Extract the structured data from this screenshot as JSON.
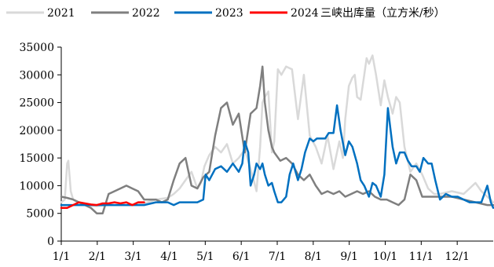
{
  "chart_data": {
    "type": "line",
    "title": "",
    "xlabel": "",
    "ylabel": "",
    "unit_label": "2024三峡出库量（立方米/秒）",
    "ylim": [
      0,
      35000
    ],
    "yticks": [
      0,
      5000,
      10000,
      15000,
      20000,
      25000,
      30000,
      35000
    ],
    "x_categories": [
      "1/1",
      "2/1",
      "3/1",
      "4/1",
      "5/1",
      "6/1",
      "7/1",
      "8/1",
      "9/1",
      "10/1",
      "11/1",
      "12/1"
    ],
    "x_domain_days": [
      0,
      365
    ],
    "grid": false,
    "legend_position": "top",
    "series": [
      {
        "name": "2021",
        "color": "#d9d9d9",
        "x": [
          0,
          3,
          5,
          6,
          8,
          10,
          14,
          20,
          30,
          40,
          50,
          60,
          70,
          80,
          90,
          95,
          100,
          105,
          110,
          115,
          118,
          121,
          125,
          130,
          135,
          140,
          145,
          150,
          155,
          160,
          162,
          165,
          168,
          170,
          172,
          175,
          178,
          180,
          183,
          186,
          190,
          195,
          200,
          205,
          210,
          215,
          220,
          225,
          230,
          235,
          238,
          240,
          243,
          246,
          248,
          250,
          253,
          256,
          258,
          260,
          263,
          266,
          270,
          273,
          276,
          280,
          283,
          286,
          290,
          295,
          300,
          305,
          310,
          315,
          320,
          330,
          340,
          350,
          355,
          360,
          365
        ],
        "values": [
          7000,
          7500,
          14000,
          14500,
          9000,
          7500,
          7000,
          6500,
          6300,
          6500,
          6500,
          6500,
          6800,
          7500,
          7800,
          8500,
          9500,
          11000,
          12500,
          9500,
          10500,
          13500,
          15500,
          17000,
          16000,
          17500,
          14000,
          15000,
          16500,
          13000,
          11500,
          9000,
          17000,
          25000,
          26000,
          27000,
          16000,
          18000,
          31000,
          30000,
          31500,
          31000,
          22000,
          30000,
          19000,
          17000,
          14000,
          19000,
          13000,
          18000,
          15000,
          22000,
          28000,
          29500,
          30000,
          26000,
          25500,
          30000,
          33000,
          32000,
          33500,
          30000,
          24500,
          29000,
          26000,
          23000,
          26000,
          25000,
          17000,
          12500,
          14000,
          12000,
          9500,
          8500,
          8500,
          9000,
          8500,
          10500,
          9000,
          8000,
          7000
        ]
      },
      {
        "name": "2022",
        "color": "#7f7f7f",
        "x": [
          0,
          5,
          10,
          15,
          20,
          25,
          30,
          35,
          40,
          45,
          50,
          55,
          60,
          65,
          70,
          75,
          80,
          85,
          90,
          95,
          100,
          105,
          110,
          115,
          120,
          125,
          130,
          135,
          140,
          145,
          150,
          155,
          160,
          165,
          168,
          170,
          172,
          175,
          178,
          180,
          185,
          190,
          195,
          200,
          205,
          210,
          215,
          220,
          225,
          230,
          235,
          240,
          245,
          250,
          255,
          260,
          265,
          270,
          275,
          280,
          285,
          290,
          295,
          300,
          305,
          310,
          315,
          320,
          330,
          340,
          350,
          360,
          365
        ],
        "values": [
          8000,
          7800,
          7500,
          7000,
          6500,
          6000,
          5000,
          5000,
          8500,
          9000,
          9500,
          10000,
          9500,
          9000,
          7500,
          7500,
          7500,
          7000,
          7500,
          11000,
          14000,
          15000,
          10000,
          9500,
          11500,
          12500,
          19000,
          24000,
          25000,
          21000,
          23000,
          16000,
          23000,
          24000,
          28000,
          31500,
          25000,
          20000,
          17000,
          16000,
          14500,
          15000,
          14000,
          12000,
          11000,
          12000,
          10000,
          8500,
          9000,
          8500,
          9000,
          8000,
          8500,
          9000,
          8500,
          9000,
          8000,
          7500,
          7500,
          7000,
          6500,
          7500,
          12000,
          11000,
          8000,
          8000,
          8000,
          8000,
          8000,
          7500,
          7000,
          6500,
          6500
        ]
      },
      {
        "name": "2023",
        "color": "#0070c0",
        "x": [
          0,
          10,
          20,
          30,
          40,
          50,
          60,
          70,
          80,
          90,
          95,
          100,
          105,
          110,
          115,
          120,
          122,
          125,
          130,
          135,
          140,
          145,
          150,
          153,
          155,
          158,
          160,
          163,
          165,
          168,
          170,
          172,
          175,
          178,
          180,
          183,
          186,
          190,
          193,
          196,
          200,
          203,
          206,
          210,
          213,
          216,
          220,
          223,
          226,
          230,
          233,
          236,
          240,
          243,
          246,
          250,
          253,
          256,
          260,
          263,
          266,
          270,
          273,
          276,
          280,
          283,
          286,
          290,
          293,
          296,
          300,
          303,
          306,
          310,
          313,
          316,
          320,
          325,
          330,
          335,
          340,
          345,
          350,
          355,
          360,
          363,
          365
        ],
        "values": [
          6500,
          6500,
          6500,
          6500,
          6500,
          6500,
          6500,
          6500,
          7000,
          7000,
          6500,
          7000,
          7000,
          7000,
          7000,
          7500,
          12000,
          11000,
          13000,
          13500,
          12500,
          14000,
          12500,
          14000,
          18000,
          16000,
          10000,
          12000,
          14000,
          13000,
          14000,
          12000,
          10000,
          10500,
          9000,
          7000,
          7000,
          8000,
          12000,
          14000,
          11000,
          13000,
          16000,
          18500,
          18000,
          18500,
          18500,
          18500,
          19500,
          19500,
          24500,
          20000,
          15500,
          18000,
          17000,
          14000,
          11000,
          10000,
          8000,
          10500,
          10000,
          8000,
          12000,
          24000,
          17000,
          14000,
          16000,
          16000,
          14500,
          13500,
          13500,
          12500,
          15000,
          14000,
          14000,
          11000,
          7500,
          8500,
          8000,
          8000,
          7500,
          7000,
          7000,
          7000,
          10000,
          7000,
          6000
        ]
      },
      {
        "name": "2024",
        "color": "#ff0000",
        "x": [
          0,
          5,
          10,
          15,
          20,
          25,
          30,
          35,
          40,
          45,
          50,
          55,
          60,
          65,
          70
        ],
        "values": [
          6000,
          6000,
          6500,
          7000,
          6800,
          6600,
          6500,
          6800,
          6800,
          7000,
          6800,
          7000,
          6500,
          7000,
          7000
        ]
      }
    ]
  }
}
